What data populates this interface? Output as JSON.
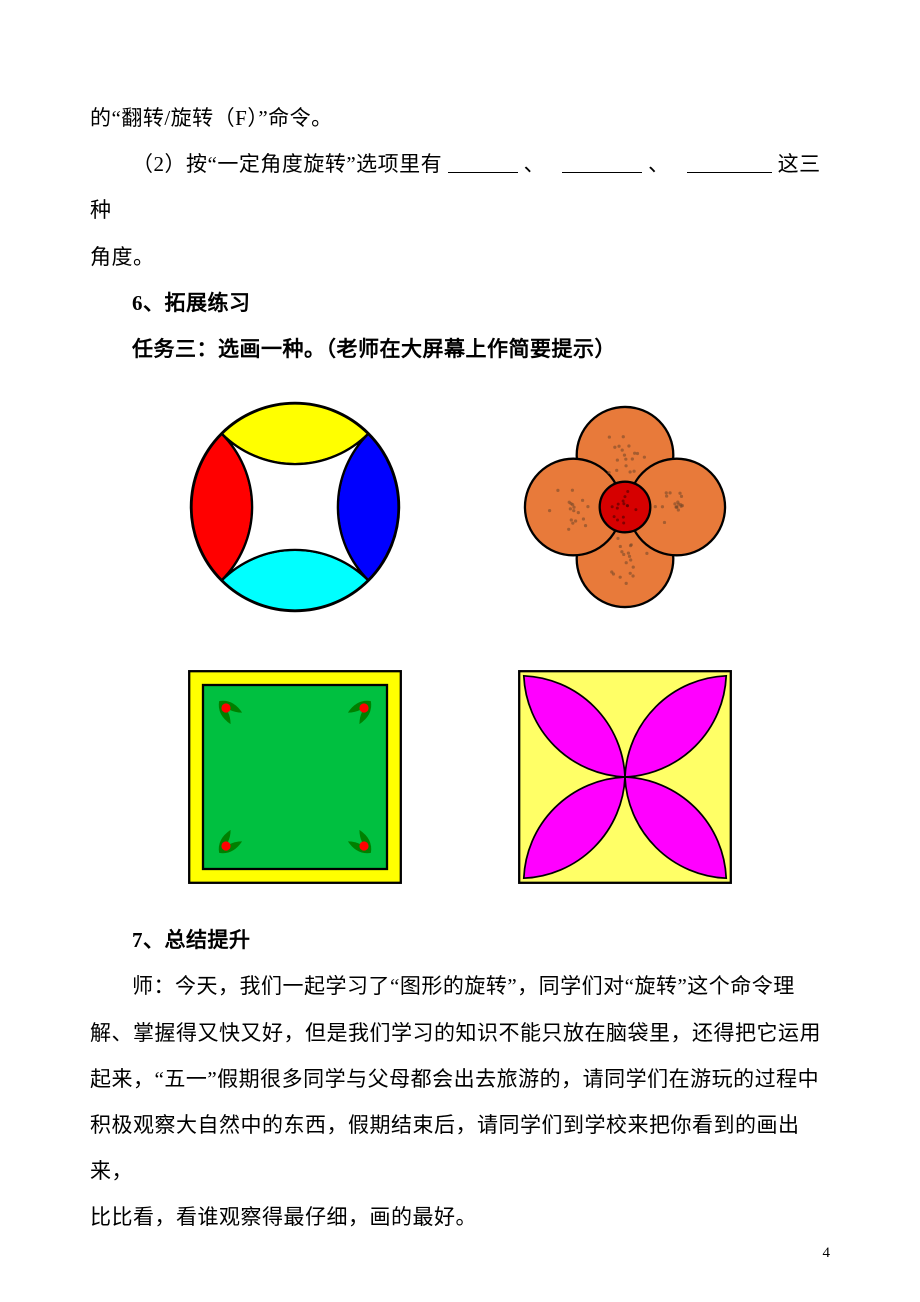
{
  "text": {
    "l1a": "的“翻转/旋转（F）”命令。",
    "l2a": "（2）按“一定角度旋转”选项里有",
    "l2b": "、",
    "l2c": "、",
    "l2d": "这三种",
    "l3": "角度。",
    "h6": "6、拓展练习",
    "task": "任务三：选画一种。（老师在大屏幕上作简要提示）",
    "h7": "7、总结提升",
    "p1": "师：今天，我们一起学习了“图形的旋转”，同学们对“旋转”这个命令理",
    "p2": "解、掌握得又快又好，但是我们学习的知识不能只放在脑袋里，还得把它运用",
    "p3": "起来，“五一”假期很多同学与父母都会出去旅游的，请同学们在游玩的过程中",
    "p4": "积极观察大自然中的东西，假期结束后，请同学们到学校来把你看到的画出来，",
    "p5": "比比看，看谁观察得最仔细，画的最好。",
    "pageNum": "4"
  },
  "blanks": {
    "w1": 70,
    "w2": 80,
    "w3": 85
  },
  "figA": {
    "size": 230,
    "circle_stroke": "#000000",
    "center_fill": "#ffffff",
    "top": "#ffff00",
    "right": "#0000ff",
    "bottom": "#00ffff",
    "left": "#ff0000"
  },
  "figB": {
    "size": 230,
    "petal": "#e87a3a",
    "center_fill": "#d60000",
    "center_stroke": "#000000",
    "texture": "#7a4a2a",
    "stroke": "#000000"
  },
  "figC": {
    "size": 230,
    "outer": "#ffff00",
    "inner": "#00c040",
    "leaf": "#008000",
    "berry": "#ff0000",
    "stroke": "#000000"
  },
  "figD": {
    "size": 230,
    "bg": "#ffff66",
    "petal": "#ff00ff",
    "stroke": "#000000"
  }
}
